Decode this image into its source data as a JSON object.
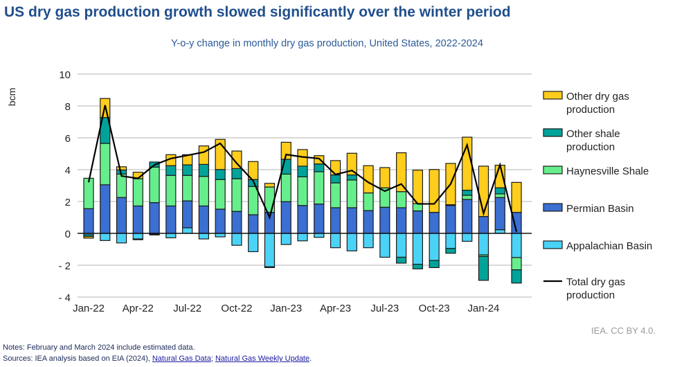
{
  "title": "US dry gas production growth slowed significantly over the winter period",
  "credit": "IEA. CC BY 4.0.",
  "notes": {
    "note": "Notes: February and March 2024 include estimated data.",
    "sources_prefix": "Sources: IEA analysis based on EIA (2024), ",
    "link1": "Natural Gas Data",
    "sep": "; ",
    "link2": "Natural Gas Weekly Update",
    "suffix": "."
  },
  "chart_data": {
    "type": "bar",
    "stacked": true,
    "title": "Y-o-y change in monthly dry gas production, United States, 2022-2024",
    "ylabel": "bcm",
    "xlabel": "",
    "ylim": [
      -4,
      10
    ],
    "yticks": [
      -4,
      -2,
      0,
      2,
      4,
      6,
      8,
      10
    ],
    "ytick_labels": [
      "- 4",
      "- 2",
      "0",
      "2",
      "4",
      "6",
      "8",
      "10"
    ],
    "grid": true,
    "legend": "right",
    "categories": [
      "Jan-22",
      "Feb-22",
      "Mar-22",
      "Apr-22",
      "May-22",
      "Jun-22",
      "Jul-22",
      "Aug-22",
      "Sep-22",
      "Oct-22",
      "Nov-22",
      "Dec-22",
      "Jan-23",
      "Feb-23",
      "Mar-23",
      "Apr-23",
      "May-23",
      "Jun-23",
      "Jul-23",
      "Aug-23",
      "Sep-23",
      "Oct-23",
      "Nov-23",
      "Dec-23",
      "Jan-24",
      "Feb-24",
      "Mar-24"
    ],
    "xtick_labels": [
      "Jan-22",
      "Apr-22",
      "Jul-22",
      "Oct-22",
      "Jan-23",
      "Apr-23",
      "Jul-23",
      "Oct-23",
      "Jan-24"
    ],
    "series": [
      {
        "name": "Appalachian Basin",
        "color": "#4bd3f7",
        "values": [
          -0.1,
          -0.45,
          -0.6,
          -0.35,
          -0.05,
          -0.28,
          0.35,
          -0.35,
          -0.22,
          -0.75,
          -1.15,
          -2.1,
          -0.7,
          -0.47,
          -0.25,
          -0.9,
          -1.1,
          -0.9,
          -1.5,
          -1.5,
          -1.94,
          -1.7,
          -0.95,
          -0.5,
          -1.35,
          0.23,
          -1.52
        ]
      },
      {
        "name": "Permian Basin",
        "color": "#3b6fd1",
        "values": [
          1.55,
          3.05,
          2.25,
          1.72,
          1.93,
          1.72,
          1.69,
          1.72,
          1.52,
          1.38,
          1.17,
          1.32,
          1.99,
          1.75,
          1.84,
          1.61,
          1.61,
          1.43,
          1.64,
          1.61,
          1.41,
          1.32,
          1.75,
          2.13,
          1.06,
          2.02,
          1.32
        ]
      },
      {
        "name": "Haynesville Shale",
        "color": "#66ee8c",
        "values": [
          1.91,
          2.6,
          1.47,
          1.71,
          2.23,
          1.92,
          1.6,
          1.86,
          1.86,
          2.05,
          1.77,
          1.59,
          1.73,
          1.8,
          2.03,
          1.56,
          1.74,
          1.11,
          1.22,
          1.01,
          0.46,
          0.0,
          0.05,
          0.26,
          -0.1,
          0.23,
          -0.77
        ]
      },
      {
        "name": "Other shale production",
        "color": "#00a39a",
        "values": [
          -0.1,
          1.62,
          0.26,
          -0.05,
          0.32,
          0.61,
          0.66,
          0.75,
          0.63,
          0.64,
          0.44,
          -0.05,
          0.93,
          0.67,
          0.49,
          0.5,
          0.32,
          0.0,
          0.0,
          -0.37,
          -0.29,
          -0.45,
          -0.3,
          0.32,
          -1.5,
          0.38,
          -0.83
        ]
      },
      {
        "name": "Other dry gas production",
        "color": "#ffcd1c",
        "values": [
          -0.1,
          1.2,
          0.2,
          0.41,
          -0.05,
          0.69,
          0.64,
          1.16,
          1.89,
          1.1,
          1.13,
          0.23,
          1.07,
          1.04,
          0.52,
          0.9,
          1.36,
          1.71,
          1.27,
          2.44,
          2.1,
          2.69,
          2.59,
          3.33,
          3.16,
          1.42,
          1.88
        ]
      }
    ],
    "line": {
      "name": "Total dry gas production",
      "color": "#000000",
      "values": [
        3.2,
        8.05,
        3.6,
        3.45,
        4.3,
        4.7,
        4.9,
        5.1,
        5.65,
        4.4,
        3.3,
        1.0,
        4.95,
        4.8,
        4.7,
        3.7,
        3.95,
        3.2,
        2.65,
        3.1,
        1.85,
        1.85,
        3.1,
        5.55,
        1.25,
        4.3,
        0.1
      ]
    },
    "legend_entries": [
      {
        "label": [
          "Other dry gas",
          "production"
        ],
        "series": 4
      },
      {
        "label": [
          "Other shale",
          "production"
        ],
        "series": 3
      },
      {
        "label": [
          "Haynesville Shale"
        ],
        "series": 2
      },
      {
        "label": [
          "Permian Basin"
        ],
        "series": 1
      },
      {
        "label": [
          "Appalachian Basin"
        ],
        "series": 0
      },
      {
        "label": [
          "Total dry gas",
          "production"
        ],
        "series": "line"
      }
    ]
  }
}
